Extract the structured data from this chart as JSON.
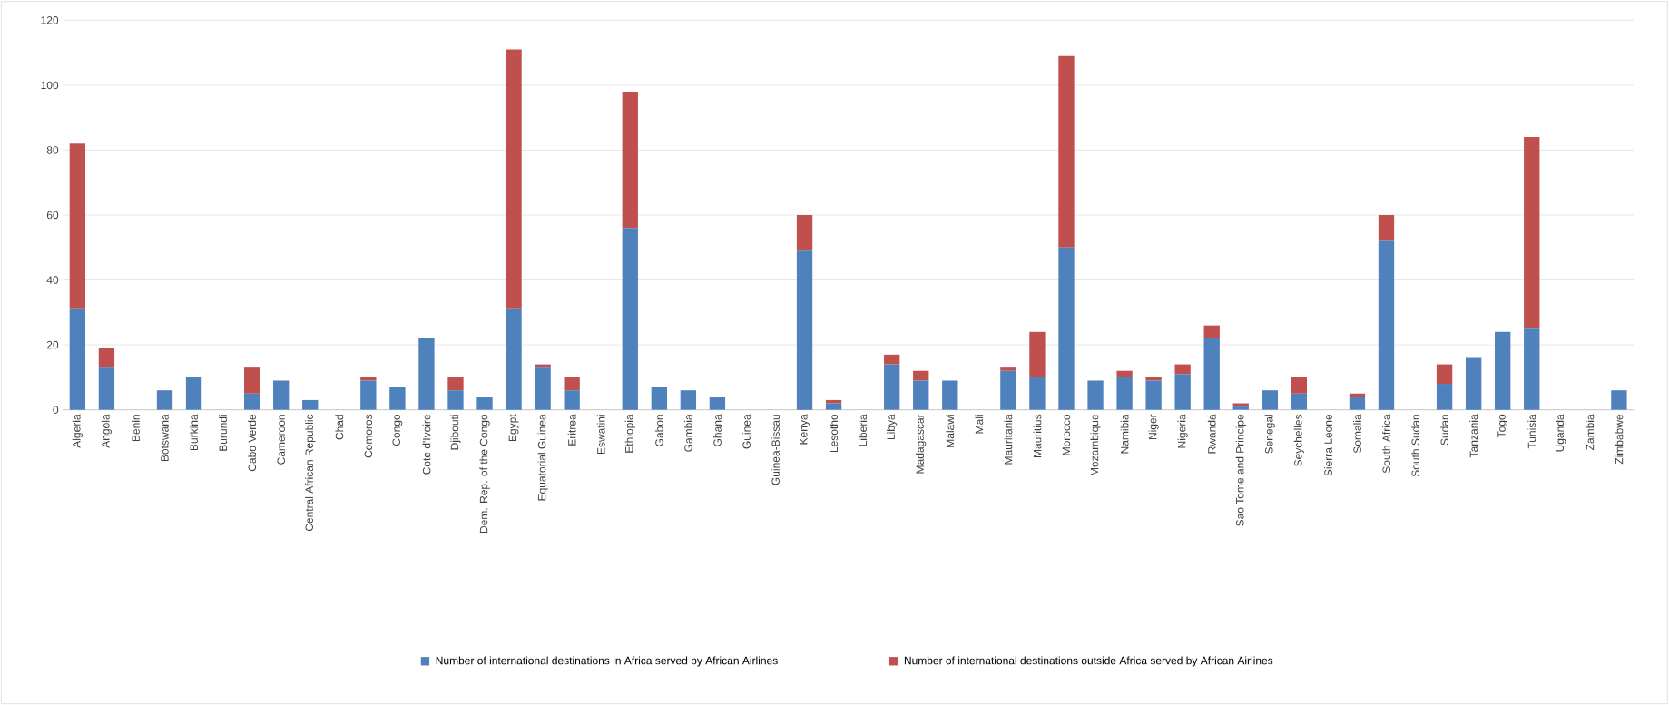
{
  "chart_data": {
    "type": "bar",
    "stacked": true,
    "grid": "y",
    "legend": "bottom",
    "categories": [
      "Algeria",
      "Angola",
      "Benin",
      "Botswana",
      "Burkina",
      "Burundi",
      "Cabo Verde",
      "Cameroon",
      "Central African Republic",
      "Chad",
      "Comoros",
      "Congo",
      "Cote d'Ivoire",
      "Djibouti",
      "Dem. Rep. of the Congo",
      "Egypt",
      "Equatorial Guinea",
      "Eritrea",
      "Eswatini",
      "Ethiopia",
      "Gabon",
      "Gambia",
      "Ghana",
      "Guinea",
      "Guinea-Bissau",
      "Kenya",
      "Lesotho",
      "Liberia",
      "Libya",
      "Madagascar",
      "Malawi",
      "Mali",
      "Mauritania",
      "Mauritius",
      "Morocco",
      "Mozambique",
      "Namibia",
      "Niger",
      "Nigeria",
      "Rwanda",
      "Sao Tome and Principe",
      "Senegal",
      "Seychelles",
      "Sierra Leone",
      "Somalia",
      "South Africa",
      "South Sudan",
      "Sudan",
      "Tanzania",
      "Togo",
      "Tunisia",
      "Uganda",
      "Zambia",
      "Zimbabwe"
    ],
    "series": [
      {
        "name": "Number of international destinations in Africa served by African Airlines",
        "color": "#4f81bd",
        "values": [
          31,
          13,
          0,
          6,
          10,
          0,
          5,
          9,
          3,
          0,
          9,
          7,
          22,
          6,
          4,
          31,
          13,
          6,
          0,
          56,
          7,
          6,
          4,
          0,
          0,
          49,
          2,
          0,
          14,
          9,
          9,
          0,
          12,
          10,
          50,
          9,
          10,
          9,
          11,
          22,
          1,
          6,
          5,
          0,
          4,
          52,
          0,
          8,
          16,
          24,
          25,
          0,
          0,
          6
        ]
      },
      {
        "name": "Number of international destinations outside Africa served by African Airlines",
        "color": "#c0504d",
        "values": [
          51,
          6,
          0,
          0,
          0,
          0,
          8,
          0,
          0,
          0,
          1,
          0,
          0,
          4,
          0,
          80,
          1,
          4,
          0,
          42,
          0,
          0,
          0,
          0,
          0,
          11,
          1,
          0,
          3,
          3,
          0,
          0,
          1,
          14,
          59,
          0,
          2,
          1,
          3,
          4,
          1,
          0,
          5,
          0,
          1,
          8,
          0,
          6,
          0,
          0,
          59,
          0,
          0,
          0
        ]
      }
    ],
    "ylim": [
      0,
      120
    ],
    "yticks": [
      0,
      20,
      40,
      60,
      80,
      100,
      120
    ]
  }
}
